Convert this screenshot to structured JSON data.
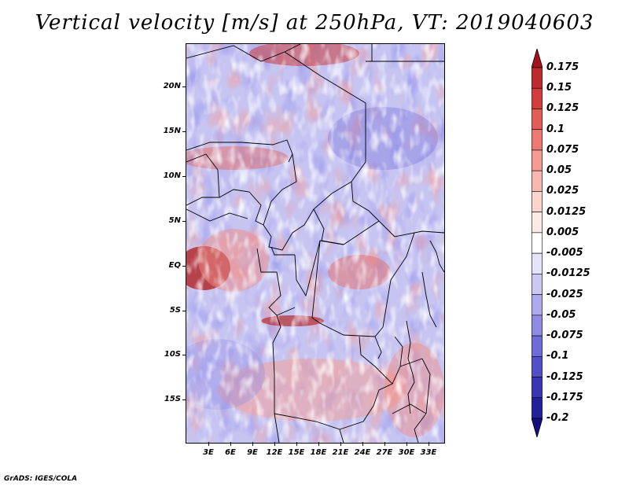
{
  "title": "Vertical velocity [m/s] at 250hPa, VT: 2019040603",
  "credit": "GrADS: IGES/COLA",
  "map": {
    "lat_labels": [
      "20N",
      "15N",
      "10N",
      "5N",
      "EQ",
      "5S",
      "10S",
      "15S"
    ],
    "lon_labels": [
      "3E",
      "6E",
      "9E",
      "12E",
      "15E",
      "18E",
      "21E",
      "24E",
      "27E",
      "30E",
      "33E"
    ]
  },
  "colorbar": {
    "labels": [
      "0.175",
      "0.15",
      "0.125",
      "0.1",
      "0.075",
      "0.05",
      "0.025",
      "0.0125",
      "0.005",
      "-0.005",
      "-0.0125",
      "-0.025",
      "-0.05",
      "-0.075",
      "-0.1",
      "-0.125",
      "-0.175",
      "-0.2"
    ],
    "colors": [
      "#a0151d",
      "#bf2a2e",
      "#d53d3c",
      "#e35c57",
      "#ec7a73",
      "#f39a92",
      "#f8b8b0",
      "#fbd4cd",
      "#fdeae6",
      "#ffffff",
      "#e4e3fa",
      "#cbc9f3",
      "#adaaed",
      "#8e8ae5",
      "#6f6bd9",
      "#5250c9",
      "#3935b4",
      "#241f9a",
      "#150e82"
    ]
  }
}
